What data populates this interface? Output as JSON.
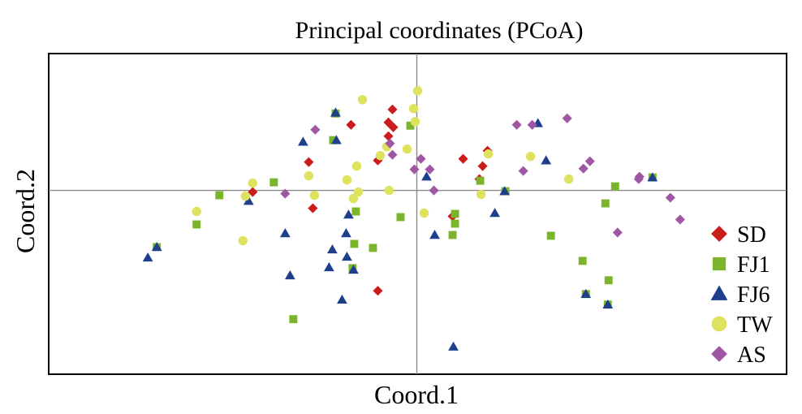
{
  "chart_data": {
    "type": "scatter",
    "title": "Principal coordinates (PCoA)",
    "xlabel": "Coord.1",
    "ylabel": "Coord.2",
    "xlim": [
      -45.3,
      45.5
    ],
    "ylim": [
      -22.7,
      16.9
    ],
    "reference_lines": {
      "x": 0,
      "y": 0
    },
    "tick_labels": false,
    "grid": false,
    "legend": "right",
    "series": [
      {
        "name": "SD",
        "marker": "diamond",
        "color": "#cc1b1b",
        "points": [
          [
            -3.0,
            10.0
          ],
          [
            -8.1,
            8.1
          ],
          [
            -3.5,
            8.4
          ],
          [
            -2.9,
            7.8
          ],
          [
            -3.5,
            6.7
          ],
          [
            -4.8,
            3.7
          ],
          [
            -13.3,
            3.5
          ],
          [
            -20.2,
            -0.2
          ],
          [
            -12.8,
            -2.2
          ],
          [
            5.7,
            3.9
          ],
          [
            8.7,
            4.9
          ],
          [
            8.1,
            3.0
          ],
          [
            7.7,
            1.4
          ],
          [
            4.4,
            -3.2
          ],
          [
            -4.8,
            -12.4
          ]
        ]
      },
      {
        "name": "FJ1",
        "marker": "square",
        "color": "#7ab52c",
        "points": [
          [
            -10.0,
            9.5
          ],
          [
            -0.8,
            8.0
          ],
          [
            -10.3,
            6.2
          ],
          [
            -17.6,
            1.0
          ],
          [
            -24.3,
            -0.6
          ],
          [
            -27.1,
            -4.2
          ],
          [
            -32.0,
            -7.0
          ],
          [
            -7.5,
            -2.6
          ],
          [
            -2.0,
            -3.3
          ],
          [
            4.7,
            -2.9
          ],
          [
            4.7,
            -4.1
          ],
          [
            4.4,
            -5.5
          ],
          [
            -7.7,
            -6.6
          ],
          [
            -5.4,
            -7.1
          ],
          [
            -7.9,
            -9.6
          ],
          [
            -15.2,
            -15.9
          ],
          [
            7.8,
            1.2
          ],
          [
            10.9,
            -0.1
          ],
          [
            16.5,
            -5.6
          ],
          [
            20.4,
            -8.7
          ],
          [
            23.6,
            -11.1
          ],
          [
            20.8,
            -12.8
          ],
          [
            23.5,
            -14.1
          ],
          [
            24.4,
            0.5
          ],
          [
            23.2,
            -1.6
          ],
          [
            29.0,
            1.6
          ]
        ]
      },
      {
        "name": "FJ6",
        "marker": "triangle",
        "color": "#1e3f8c",
        "points": [
          [
            -10.0,
            9.6
          ],
          [
            14.9,
            8.3
          ],
          [
            -14.0,
            6.0
          ],
          [
            -9.9,
            6.2
          ],
          [
            1.2,
            1.7
          ],
          [
            -20.7,
            -1.3
          ],
          [
            -8.4,
            -3.0
          ],
          [
            -16.2,
            -5.3
          ],
          [
            -8.7,
            -5.3
          ],
          [
            -10.4,
            -7.3
          ],
          [
            -8.6,
            -8.2
          ],
          [
            -10.8,
            -9.5
          ],
          [
            -7.8,
            -9.8
          ],
          [
            -15.6,
            -10.5
          ],
          [
            -9.2,
            -13.5
          ],
          [
            -32.0,
            -7.0
          ],
          [
            -33.1,
            -8.3
          ],
          [
            2.2,
            -5.5
          ],
          [
            9.6,
            -2.8
          ],
          [
            10.8,
            -0.1
          ],
          [
            15.9,
            3.7
          ],
          [
            20.8,
            -12.8
          ],
          [
            23.5,
            -14.1
          ],
          [
            29.0,
            1.6
          ],
          [
            4.5,
            -19.3
          ]
        ]
      },
      {
        "name": "TW",
        "marker": "circle",
        "color": "#dfe25f",
        "points": [
          [
            -6.7,
            11.2
          ],
          [
            0.1,
            12.3
          ],
          [
            -0.2,
            8.5
          ],
          [
            -0.4,
            10.1
          ],
          [
            -1.2,
            5.1
          ],
          [
            -3.7,
            5.4
          ],
          [
            -4.5,
            4.3
          ],
          [
            -7.4,
            3.0
          ],
          [
            -13.3,
            1.8
          ],
          [
            -8.6,
            1.3
          ],
          [
            -7.2,
            -0.2
          ],
          [
            -3.4,
            0.0
          ],
          [
            -12.6,
            -0.6
          ],
          [
            -20.2,
            0.9
          ],
          [
            -21.1,
            -0.7
          ],
          [
            -7.8,
            -1.0
          ],
          [
            -27.1,
            -2.6
          ],
          [
            -21.4,
            -6.2
          ],
          [
            0.9,
            -2.8
          ],
          [
            8.8,
            4.5
          ],
          [
            14.0,
            4.2
          ],
          [
            18.7,
            1.4
          ],
          [
            7.9,
            -0.5
          ]
        ]
      },
      {
        "name": "AS",
        "marker": "diamond",
        "color": "#a057a3",
        "points": [
          [
            -12.5,
            7.5
          ],
          [
            -3.3,
            5.8
          ],
          [
            -3.0,
            4.4
          ],
          [
            -0.3,
            2.6
          ],
          [
            0.5,
            3.9
          ],
          [
            1.6,
            2.6
          ],
          [
            2.1,
            0.0
          ],
          [
            -16.2,
            -0.4
          ],
          [
            12.3,
            8.1
          ],
          [
            14.2,
            8.1
          ],
          [
            18.5,
            8.9
          ],
          [
            20.5,
            2.7
          ],
          [
            21.3,
            3.6
          ],
          [
            13.1,
            2.4
          ],
          [
            27.4,
            1.7
          ],
          [
            27.3,
            1.4
          ],
          [
            31.2,
            -0.9
          ],
          [
            32.4,
            -3.6
          ],
          [
            24.7,
            -5.2
          ]
        ]
      }
    ]
  }
}
